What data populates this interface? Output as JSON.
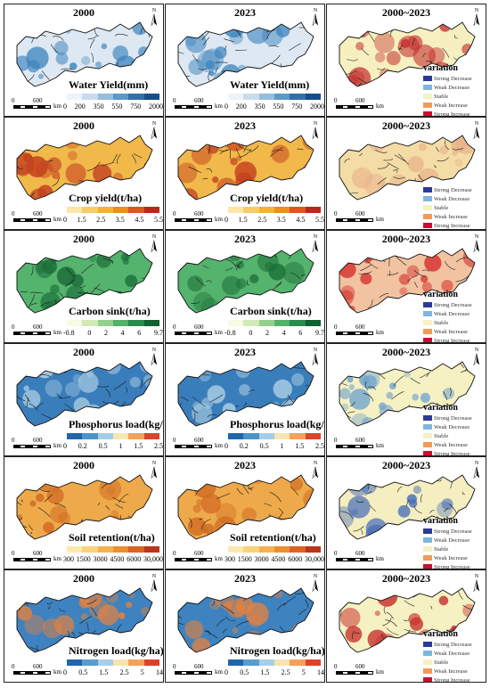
{
  "rows": [
    {
      "id": "water-yield",
      "legend_title": "Water Yield(mm)",
      "ticks": [
        "0",
        "200",
        "350",
        "550",
        "750",
        "2000"
      ],
      "ramp": [
        "#eef3fa",
        "#c9dcee",
        "#94bedd",
        "#5b99c8",
        "#2f70ad",
        "#174d8a"
      ],
      "map_base": "#dde8f3",
      "map_accent": "#3c83bd",
      "diff_base": "#f6f0c0",
      "diff_accent": "#c43030",
      "has_variation_legend": true
    },
    {
      "id": "crop-yield",
      "legend_title": "Crop yield(t/ha)",
      "ticks": [
        "0",
        "1.5",
        "2.5",
        "3.5",
        "4.5",
        "5.5"
      ],
      "ramp": [
        "#fbe6a6",
        "#f7cc66",
        "#f3b041",
        "#ea8d2a",
        "#d9581d",
        "#b8281a"
      ],
      "map_base": "#f1b84a",
      "map_accent": "#c4401f",
      "diff_base": "#f3dca6",
      "diff_accent": "#e8b28a",
      "has_variation_legend": false
    },
    {
      "id": "carbon-sink",
      "legend_title": "Carbon sink(t/ha)",
      "ticks": [
        "-0.8",
        "0",
        "2",
        "4",
        "6",
        "9.7"
      ],
      "ramp": [
        "#f6fbe4",
        "#cfeab7",
        "#93d08d",
        "#52b06b",
        "#2a8b4b",
        "#12612f"
      ],
      "map_base": "#54b36d",
      "map_accent": "#1b6d38",
      "diff_base": "#f2c3a1",
      "diff_accent": "#d5312e",
      "has_variation_legend": true
    },
    {
      "id": "phosphorus-load",
      "legend_title": "Phosphorus load(kg/ha)",
      "ticks": [
        "0",
        "0.2",
        "0.5",
        "1",
        "1.5",
        "2.5"
      ],
      "ramp": [
        "#2166ac",
        "#4d93c8",
        "#a6cde6",
        "#f7e5b3",
        "#f3a259",
        "#d8452b"
      ],
      "map_base": "#3a7dbb",
      "map_accent": "#a9cde3",
      "diff_base": "#f6f1c2",
      "diff_accent": "#6aa1cf",
      "has_variation_legend": true
    },
    {
      "id": "soil-retention",
      "legend_title": "Soil retention(t/ha)",
      "ticks": [
        "300",
        "1500",
        "3000",
        "4500",
        "6000",
        "30,000"
      ],
      "ramp": [
        "#fce9ae",
        "#f9d27a",
        "#f4b24f",
        "#ec8f33",
        "#da6320",
        "#b8361a"
      ],
      "map_base": "#eeaa4a",
      "map_accent": "#d06a23",
      "diff_base": "#f4eec0",
      "diff_accent": "#4a6fb8",
      "has_variation_legend": true
    },
    {
      "id": "nitrogen-load",
      "legend_title": "Nitrogen load(kg/ha)",
      "ticks": [
        "0",
        "0.5",
        "1.5",
        "2.5",
        "5",
        "14"
      ],
      "ramp": [
        "#2166ac",
        "#5a9dcc",
        "#a7cfe6",
        "#f9e3b0",
        "#f4a15a",
        "#e0402c"
      ],
      "map_base": "#3e82bf",
      "map_accent": "#e9813b",
      "diff_base": "#f6f1c2",
      "diff_accent": "#c8302e",
      "has_variation_legend": true
    }
  ],
  "column_titles": [
    "2000",
    "2023",
    "2000~2023"
  ],
  "scale": {
    "zero": "0",
    "mid": "600",
    "unit": "km"
  },
  "north_label": "N",
  "variation": {
    "title": "variation",
    "items": [
      {
        "label": "Strong Decrease",
        "color": "#2b3a9a"
      },
      {
        "label": "Weak Decrease",
        "color": "#7fb6db"
      },
      {
        "label": "Stable",
        "color": "#f6f1c2"
      },
      {
        "label": "Weak Increase",
        "color": "#f39a5b"
      },
      {
        "label": "Strong Increase",
        "color": "#c8102e"
      }
    ]
  }
}
